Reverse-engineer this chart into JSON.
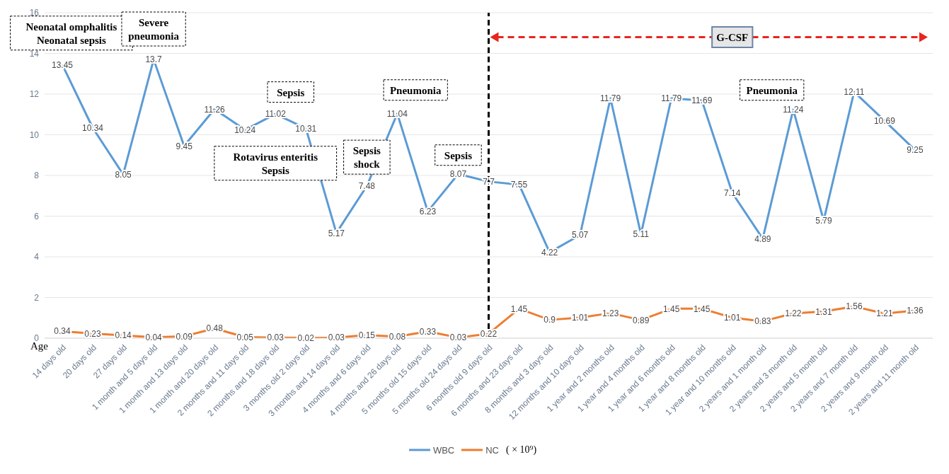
{
  "chart_data": {
    "type": "line",
    "xlabel": "Age",
    "categories": [
      "14 days old",
      "20 days old",
      "27 days old",
      "1 month and 5 days old",
      "1 month and 13 days old",
      "1 month and 20 days old",
      "2 months and 11 days old",
      "2 months and 18 days old",
      "3 months old 2 days old",
      "3 months and 14 days old",
      "4 months and 6 days old",
      "4 months and 26 days old",
      "5 months old 15 days old",
      "5 months old 24 days old",
      "6 months old 9 days old",
      "6 months and 23 days old",
      "8 months and 3 days old",
      "12 months and 10 days old",
      "1 year and 2 months old",
      "1 year and 4 months old",
      "1 year and 6 months old",
      "1 year and 8 months old",
      "1 year and 10 months old",
      "2 years and 1 month old",
      "2 years and 3 month old",
      "2 years and 5 month old",
      "2 years and 7 month old",
      "2 years and 9 month old",
      "2 years and 11 month old"
    ],
    "series": [
      {
        "name": "WBC",
        "color": "#5b9bd5",
        "values": [
          13.45,
          10.34,
          8.05,
          13.7,
          9.45,
          11.26,
          10.24,
          11.02,
          10.31,
          5.17,
          7.48,
          11.04,
          6.23,
          8.07,
          7.7,
          7.55,
          4.22,
          5.07,
          11.79,
          5.11,
          11.79,
          11.69,
          7.14,
          4.89,
          11.24,
          5.79,
          12.11,
          10.69,
          9.25
        ]
      },
      {
        "name": "NC",
        "color": "#ed7d31",
        "values": [
          0.34,
          0.23,
          0.14,
          0.04,
          0.09,
          0.48,
          0.05,
          0.03,
          0.02,
          0.03,
          0.15,
          0.08,
          0.33,
          0.03,
          0.22,
          1.45,
          0.9,
          1.01,
          1.23,
          0.89,
          1.45,
          1.45,
          1.01,
          0.83,
          1.22,
          1.31,
          1.56,
          1.21,
          1.36
        ]
      }
    ],
    "ylim": [
      0,
      16
    ],
    "yticks": [
      0,
      2,
      4,
      6,
      8,
      10,
      12,
      14,
      16
    ],
    "grid": "y",
    "legend": "bottom",
    "marker": "none",
    "line_style": "solid",
    "data_labels": true,
    "ref_lines": [
      {
        "axis": "x",
        "value": "6 months old 9 days old",
        "color": "#000000",
        "line_style": "dashed"
      }
    ],
    "annotations": [
      "Neonatal omphalitis\nNeonatal sepsis",
      "Severe\npneumonia",
      "Sepsis",
      "Rotavirus enteritis\nSepsis",
      "Sepsis\nshock",
      "Pneumonia",
      "Sepsis",
      "Pneumonia",
      "G-CSF",
      "( × 10⁹)"
    ]
  }
}
